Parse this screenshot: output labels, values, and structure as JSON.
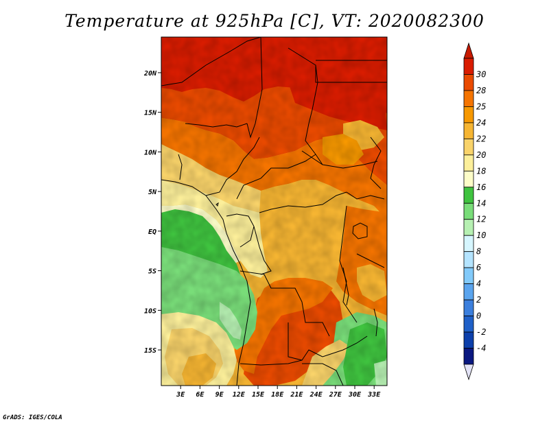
{
  "title": "Temperature at 925hPa [C], VT: 2020082300",
  "credit": "GrADS: IGES/COLA",
  "lat_labels": [
    "20N",
    "15N",
    "10N",
    "5N",
    "EQ",
    "5S",
    "10S",
    "15S"
  ],
  "lat_values": [
    20,
    15,
    10,
    5,
    0,
    -5,
    -10,
    -15
  ],
  "lon_labels": [
    "3E",
    "6E",
    "9E",
    "12E",
    "15E",
    "18E",
    "21E",
    "24E",
    "27E",
    "30E",
    "33E"
  ],
  "lon_values": [
    3,
    6,
    9,
    12,
    15,
    18,
    21,
    24,
    27,
    30,
    33
  ],
  "extent": {
    "lon_min": 0,
    "lon_max": 35,
    "lat_min": -19.5,
    "lat_max": 24.5
  },
  "colorbar": {
    "labels": [
      "30",
      "28",
      "25",
      "24",
      "22",
      "20",
      "18",
      "16",
      "14",
      "12",
      "10",
      "8",
      "6",
      "4",
      "2",
      "0",
      "-2",
      "-4"
    ],
    "colors": [
      "#d91c00",
      "#ea4a00",
      "#f57400",
      "#f79800",
      "#f6b532",
      "#f9d36a",
      "#fcef9a",
      "#fdfdc8",
      "#3fc33f",
      "#79dd79",
      "#b6f0b2",
      "#d6f6ff",
      "#b4e4ff",
      "#82cafa",
      "#5aa4ee",
      "#3b7fdd",
      "#1f60c8",
      "#0c3fab",
      "#0a1880"
    ],
    "top_arrow": "#c81a00",
    "bottom_arrow": "#e3e3f6"
  }
}
